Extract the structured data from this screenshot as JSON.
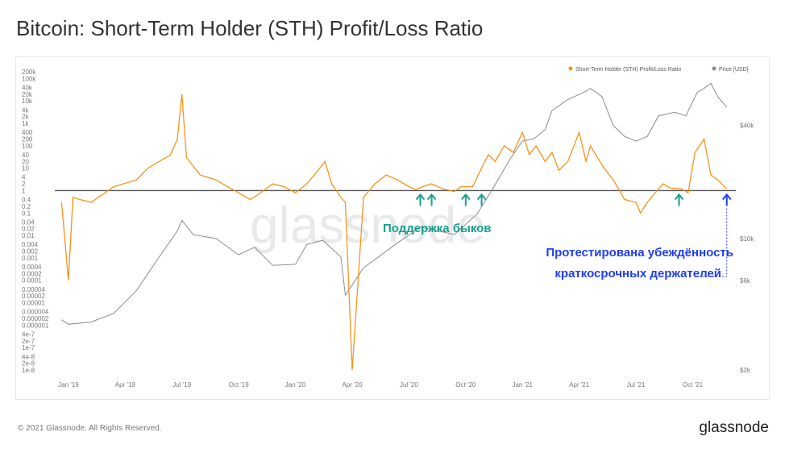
{
  "title": "Bitcoin: Short-Term Holder (STH) Profit/Loss Ratio",
  "footer": {
    "copyright": "© 2021 Glassnode. All Rights Reserved.",
    "brand": "glassnode"
  },
  "watermark": "glassnode",
  "colors": {
    "sth": "#f7931a",
    "price": "#8c8c8c",
    "annot_green": "#1a9e8c",
    "annot_blue": "#1f3cff",
    "baseline": "#555555"
  },
  "chart_data": {
    "type": "line",
    "title": "Bitcoin: Short-Term Holder (STH) Profit/Loss Ratio",
    "legend": {
      "placement": "top-right",
      "entries": [
        "Short-Term Holder (STH) Profit/Loss Ratio",
        "Price [USD]"
      ]
    },
    "x_ticks": [
      "Jan '19",
      "Apr '19",
      "Jul '19",
      "Oct '19",
      "Jan '20",
      "Apr '20",
      "Jul '20",
      "Oct '20",
      "Jan '21",
      "Apr '21",
      "Jul '21",
      "Oct '21"
    ],
    "left_axis": {
      "scale": "log",
      "ticks": [
        "200k",
        "100k",
        "40k",
        "20k",
        "10k",
        "4k",
        "2k",
        "1k",
        "400",
        "200",
        "100",
        "40",
        "20",
        "10",
        "4",
        "2",
        "1",
        "0.4",
        "0.2",
        "0.1",
        "0.04",
        "0.02",
        "0.01",
        "0.004",
        "0.002",
        "0.001",
        "0.0004",
        "0.0002",
        "0.0001",
        "0.00004",
        "0.00002",
        "0.00001",
        "0.000004",
        "0.000002",
        "0.000001",
        "4e-7",
        "2e-7",
        "1e-7",
        "4e-8",
        "2e-8",
        "1e-8"
      ],
      "baseline": 1
    },
    "right_axis": {
      "scale": "log",
      "ticks": [
        "$40k",
        "$10k",
        "$6k",
        "$2k"
      ]
    },
    "series": [
      {
        "name": "Short-Term Holder (STH) Profit/Loss Ratio",
        "t": [
          2018.97,
          2019.0,
          2019.02,
          2019.05,
          2019.1,
          2019.2,
          2019.3,
          2019.35,
          2019.4,
          2019.45,
          2019.48,
          2019.5,
          2019.52,
          2019.58,
          2019.65,
          2019.7,
          2019.75,
          2019.8,
          2019.83,
          2019.9,
          2019.95,
          2020.0,
          2020.05,
          2020.1,
          2020.13,
          2020.16,
          2020.2,
          2020.22,
          2020.25,
          2020.3,
          2020.35,
          2020.4,
          2020.45,
          2020.5,
          2020.53,
          2020.56,
          2020.6,
          2020.65,
          2020.7,
          2020.73,
          2020.78,
          2020.82,
          2020.85,
          2020.88,
          2020.92,
          2020.96,
          2021.0,
          2021.03,
          2021.06,
          2021.1,
          2021.13,
          2021.16,
          2021.2,
          2021.25,
          2021.28,
          2021.3,
          2021.33,
          2021.36,
          2021.4,
          2021.45,
          2021.5,
          2021.52,
          2021.55,
          2021.6,
          2021.62,
          2021.65,
          2021.7,
          2021.73,
          2021.76,
          2021.8,
          2021.83,
          2021.86,
          2021.9
        ],
        "values": [
          0.3,
          0.0001,
          0.5,
          0.4,
          0.3,
          1.5,
          3,
          10,
          20,
          40,
          200,
          20000,
          30,
          5,
          3,
          1.5,
          0.8,
          0.4,
          0.6,
          2,
          1.5,
          0.8,
          2,
          8,
          20,
          2,
          0.5,
          0.3,
          1e-08,
          0.5,
          2,
          5,
          3,
          1.5,
          1.1,
          1.5,
          2,
          1.2,
          0.9,
          1.5,
          1.5,
          10,
          40,
          20,
          100,
          50,
          400,
          40,
          100,
          20,
          50,
          8,
          20,
          400,
          20,
          100,
          30,
          10,
          3,
          0.4,
          0.3,
          0.1,
          0.3,
          1.2,
          2,
          1.3,
          1.2,
          0.8,
          50,
          200,
          5,
          3,
          1.2
        ]
      },
      {
        "name": "Price [USD]",
        "t": [
          2018.97,
          2019.0,
          2019.1,
          2019.2,
          2019.3,
          2019.4,
          2019.48,
          2019.5,
          2019.55,
          2019.65,
          2019.75,
          2019.82,
          2019.9,
          2020.0,
          2020.05,
          2020.12,
          2020.2,
          2020.22,
          2020.3,
          2020.45,
          2020.55,
          2020.63,
          2020.7,
          2020.8,
          2020.87,
          2020.95,
          2021.0,
          2021.05,
          2021.1,
          2021.13,
          2021.2,
          2021.27,
          2021.3,
          2021.35,
          2021.4,
          2021.45,
          2021.5,
          2021.55,
          2021.6,
          2021.67,
          2021.72,
          2021.77,
          2021.8,
          2021.83,
          2021.86,
          2021.9
        ],
        "values": [
          3700,
          3500,
          3600,
          4000,
          5300,
          8000,
          11000,
          12500,
          10500,
          10000,
          8200,
          9000,
          7200,
          7300,
          9300,
          9800,
          8000,
          5000,
          7000,
          9500,
          11500,
          11000,
          10500,
          13500,
          18500,
          27000,
          33000,
          34000,
          38000,
          48000,
          55000,
          60000,
          63000,
          57000,
          40000,
          35000,
          33000,
          35000,
          45000,
          47000,
          45000,
          60000,
          63000,
          67000,
          57000,
          50000
        ]
      }
    ],
    "annotations": [
      {
        "text": "Поддержка быков",
        "color": "green",
        "arrow_times": [
          2020.55,
          2020.6,
          2020.75,
          2020.82,
          2021.69
        ]
      },
      {
        "text": "Протестирована убеждённость краткосрочных держателей",
        "lines": [
          "Протестирована убеждённость",
          "краткосрочных держателей"
        ],
        "color": "blue",
        "arrow_times": [
          2021.9
        ]
      }
    ]
  }
}
